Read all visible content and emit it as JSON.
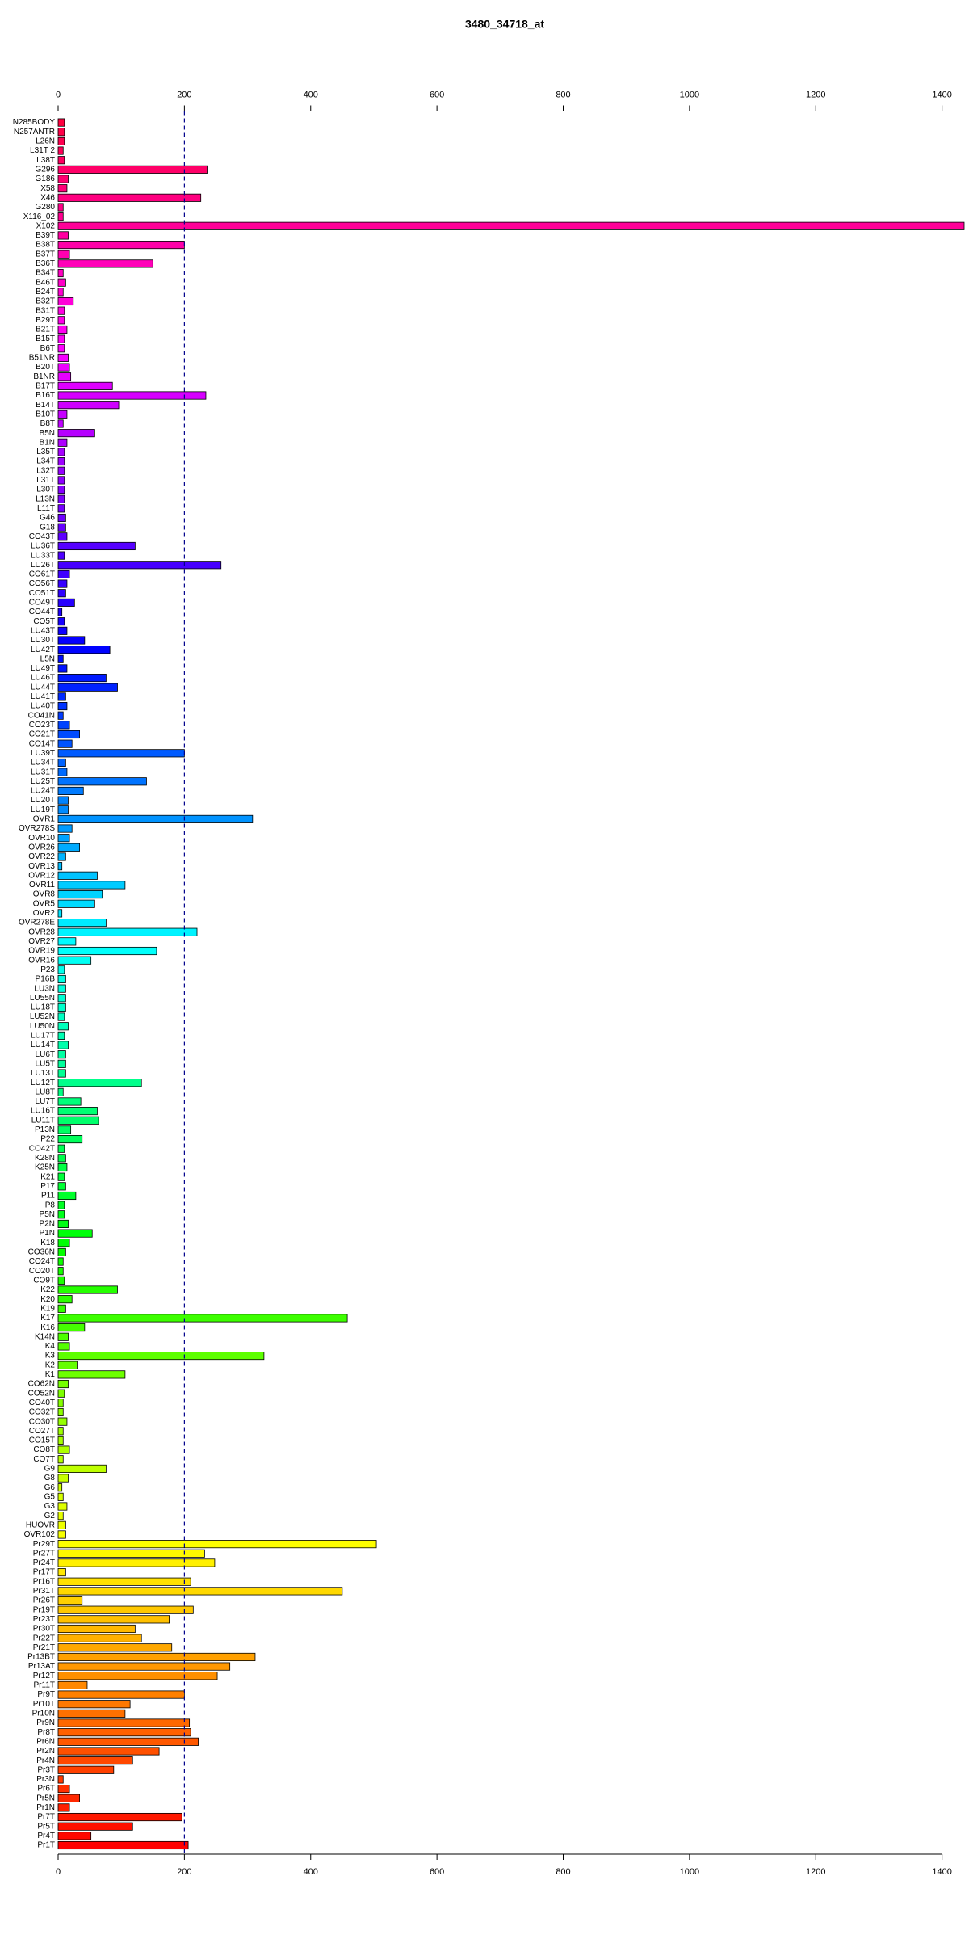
{
  "chart_data": {
    "type": "barh",
    "title": "3480_34718_at",
    "categories": [
      "N285BODY",
      "N257ANTR",
      "L26N",
      "L31T 2",
      "L38T",
      "G296",
      "G186",
      "X58",
      "X46",
      "G280",
      "X116_02",
      "X102",
      "B39T",
      "B38T",
      "B37T",
      "B36T",
      "B34T",
      "B46T",
      "B24T",
      "B32T",
      "B31T",
      "B29T",
      "B21T",
      "B15T",
      "B6T",
      "B51NR",
      "B20T",
      "B1NR",
      "B17T",
      "B16T",
      "B14T",
      "B10T",
      "B8T",
      "B5N",
      "B1N",
      "L35T",
      "L34T",
      "L32T",
      "L31T",
      "L30T",
      "L13N",
      "L11T",
      "G46",
      "G18",
      "CO43T",
      "LU36T",
      "LU33T",
      "LU26T",
      "CO61T",
      "CO56T",
      "CO51T",
      "CO49T",
      "CO44T",
      "CO5T",
      "LU43T",
      "LU30T",
      "LU42T",
      "L5N",
      "LU49T",
      "LU46T",
      "LU44T",
      "LU41T",
      "LU40T",
      "CO41N",
      "CO23T",
      "CO21T",
      "CO14T",
      "LU39T",
      "LU34T",
      "LU31T",
      "LU25T",
      "LU24T",
      "LU20T",
      "LU19T",
      "OVR1",
      "OVR278S",
      "OVR10",
      "OVR26",
      "OVR22",
      "OVR13",
      "OVR12",
      "OVR11",
      "OVR8",
      "OVR5",
      "OVR2",
      "OVR278E",
      "OVR28",
      "OVR27",
      "OVR19",
      "OVR16",
      "P23",
      "P16B",
      "LU3N",
      "LU55N",
      "LU18T",
      "LU52N",
      "LU50N",
      "LU17T",
      "LU14T",
      "LU6T",
      "LU5T",
      "LU13T",
      "LU12T",
      "LU8T",
      "LU7T",
      "LU16T",
      "LU11T",
      "P13N",
      "P22",
      "CO42T",
      "K28N",
      "K25N",
      "K21",
      "P17",
      "P11",
      "P8",
      "P5N",
      "P2N",
      "P1N",
      "K18",
      "CO36N",
      "CO24T",
      "CO20T",
      "CO9T",
      "K22",
      "K20",
      "K19",
      "K17",
      "K16",
      "K14N",
      "K4",
      "K3",
      "K2",
      "K1",
      "CO62N",
      "CO52N",
      "CO40T",
      "CO32T",
      "CO30T",
      "CO27T",
      "CO15T",
      "CO8T",
      "CO7T",
      "G9",
      "G8",
      "G6",
      "G5",
      "G3",
      "G2",
      "HUOVR",
      "OVR102",
      "Pr29T",
      "Pr27T",
      "Pr24T",
      "Pr17T",
      "Pr16T",
      "Pr31T",
      "Pr26T",
      "Pr19T",
      "Pr23T",
      "Pr30T",
      "Pr22T",
      "Pr21T",
      "Pr13BT",
      "Pr13AT",
      "Pr12T",
      "Pr11T",
      "Pr9T",
      "Pr10T",
      "Pr10N",
      "Pr9N",
      "Pr8T",
      "Pr6N",
      "Pr2N",
      "Pr4N",
      "Pr3T",
      "Pr3N",
      "Pr6T",
      "Pr5N",
      "Pr1N",
      "Pr7T",
      "Pr5T",
      "Pr4T",
      "Pr1T"
    ],
    "values": [
      10,
      10,
      10,
      8,
      10,
      236,
      16,
      14,
      226,
      8,
      8,
      1435,
      16,
      200,
      18,
      150,
      8,
      12,
      8,
      24,
      10,
      10,
      14,
      10,
      10,
      16,
      18,
      20,
      86,
      234,
      96,
      14,
      8,
      58,
      14,
      10,
      10,
      10,
      10,
      10,
      10,
      10,
      12,
      12,
      14,
      122,
      10,
      258,
      18,
      14,
      12,
      26,
      6,
      10,
      14,
      42,
      82,
      8,
      14,
      76,
      94,
      12,
      14,
      8,
      18,
      34,
      22,
      200,
      12,
      14,
      140,
      40,
      16,
      16,
      308,
      22,
      18,
      34,
      12,
      6,
      62,
      106,
      70,
      58,
      6,
      76,
      220,
      28,
      156,
      52,
      10,
      12,
      12,
      12,
      12,
      10,
      16,
      10,
      16,
      12,
      12,
      12,
      132,
      8,
      36,
      62,
      64,
      20,
      38,
      10,
      12,
      14,
      10,
      12,
      28,
      10,
      10,
      16,
      54,
      18,
      12,
      8,
      8,
      10,
      94,
      22,
      12,
      458,
      42,
      16,
      18,
      326,
      30,
      106,
      16,
      10,
      8,
      8,
      14,
      8,
      8,
      18,
      8,
      76,
      16,
      6,
      8,
      14,
      8,
      12,
      12,
      504,
      232,
      248,
      12,
      210,
      450,
      38,
      214,
      176,
      122,
      132,
      180,
      312,
      272,
      252,
      46,
      200,
      114,
      106,
      208,
      210,
      222,
      160,
      118,
      88,
      8,
      18,
      34,
      18,
      196,
      118,
      52,
      206
    ],
    "colormap": {
      "name": "rainbow",
      "hue_start": 345,
      "hue_end": 0
    },
    "xlim": [
      0,
      1435
    ],
    "xticks": [
      0,
      200,
      400,
      600,
      800,
      1000,
      1200,
      1400
    ],
    "reference_line": 200
  }
}
